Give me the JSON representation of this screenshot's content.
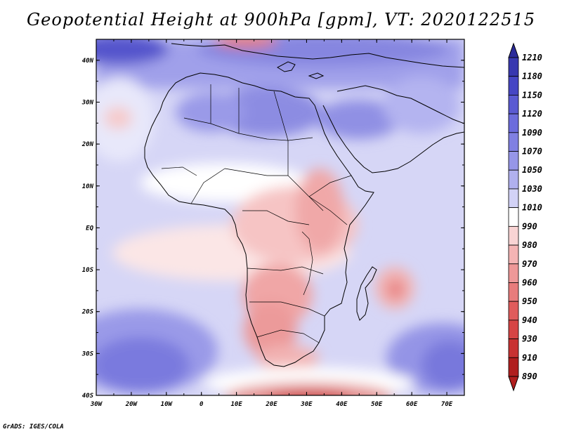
{
  "title": "Geopotential Height at 900hPa [gpm], VT: 2020122515",
  "credit": "GrADS: IGES/COLA",
  "map": {
    "lon_labels": [
      "30W",
      "20W",
      "10W",
      "0",
      "10E",
      "20E",
      "30E",
      "40E",
      "50E",
      "60E",
      "70E"
    ],
    "lat_labels": [
      "40N",
      "30N",
      "20N",
      "10N",
      "EQ",
      "10S",
      "20S",
      "30S",
      "40S"
    ],
    "lon_range": [
      -30,
      75
    ],
    "lat_range": [
      -40,
      45
    ]
  },
  "colorbar": {
    "levels": [
      "1210",
      "1180",
      "1150",
      "1120",
      "1090",
      "1070",
      "1050",
      "1030",
      "1010",
      "990",
      "980",
      "970",
      "960",
      "950",
      "940",
      "930",
      "910",
      "890"
    ],
    "colors": [
      "#2a2a9a",
      "#3838b0",
      "#4646c4",
      "#5a5ad2",
      "#6c6cdc",
      "#8080e2",
      "#9696e8",
      "#b0b0ee",
      "#d2d2f6",
      "#ffffff",
      "#f9d4d4",
      "#f4b4b4",
      "#ee9898",
      "#e87c7c",
      "#e05c5c",
      "#d64444",
      "#c83232",
      "#b01e1e"
    ]
  }
}
